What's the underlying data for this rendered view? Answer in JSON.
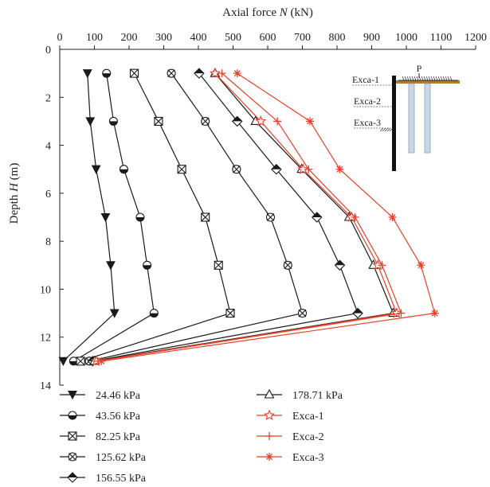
{
  "chart_data": {
    "type": "line",
    "x_axis": {
      "label_prefix": "Axial force ",
      "label_var": "N",
      "label_suffix": " (kN)",
      "range": [
        0,
        1200
      ],
      "ticks": [
        0,
        100,
        200,
        300,
        400,
        500,
        600,
        700,
        800,
        900,
        1000,
        1100,
        1200
      ],
      "position": "top"
    },
    "y_axis": {
      "label_prefix": "Depth ",
      "label_var": "H",
      "label_suffix": " (m)",
      "range": [
        0,
        14
      ],
      "ticks": [
        0,
        2,
        4,
        6,
        8,
        10,
        12,
        14
      ],
      "inverted": true
    },
    "grid": false,
    "legend_position": "bottom",
    "series": [
      {
        "name": "24.46 kPa",
        "color": "#1a1a1a",
        "marker": "triangle-down",
        "points": [
          [
            80,
            1
          ],
          [
            88,
            3
          ],
          [
            105,
            5
          ],
          [
            132,
            7
          ],
          [
            147,
            9
          ],
          [
            158,
            11
          ],
          [
            10,
            13
          ]
        ]
      },
      {
        "name": "43.56 kPa",
        "color": "#1a1a1a",
        "marker": "circle-half",
        "points": [
          [
            135,
            1
          ],
          [
            155,
            3
          ],
          [
            185,
            5
          ],
          [
            232,
            7
          ],
          [
            252,
            9
          ],
          [
            272,
            11
          ],
          [
            40,
            13
          ]
        ]
      },
      {
        "name": "82.25 kPa",
        "color": "#1a1a1a",
        "marker": "square-x",
        "points": [
          [
            215,
            1
          ],
          [
            285,
            3
          ],
          [
            352,
            5
          ],
          [
            420,
            7
          ],
          [
            458,
            9
          ],
          [
            492,
            11
          ],
          [
            60,
            13
          ]
        ]
      },
      {
        "name": "125.62 kPa",
        "color": "#1a1a1a",
        "marker": "circle-x",
        "points": [
          [
            322,
            1
          ],
          [
            420,
            3
          ],
          [
            510,
            5
          ],
          [
            608,
            7
          ],
          [
            658,
            9
          ],
          [
            700,
            11
          ],
          [
            85,
            13
          ]
        ]
      },
      {
        "name": "156.55 kPa",
        "color": "#1a1a1a",
        "marker": "diamond-half",
        "points": [
          [
            402,
            1
          ],
          [
            512,
            3
          ],
          [
            625,
            5
          ],
          [
            742,
            7
          ],
          [
            808,
            9
          ],
          [
            860,
            11
          ],
          [
            95,
            13
          ]
        ]
      },
      {
        "name": "178.71 kPa",
        "color": "#1a1a1a",
        "marker": "triangle-up-open",
        "points": [
          [
            448,
            1
          ],
          [
            565,
            3
          ],
          [
            698,
            5
          ],
          [
            835,
            7
          ],
          [
            905,
            9
          ],
          [
            962,
            11
          ],
          [
            100,
            13
          ]
        ]
      },
      {
        "name": "Exca-1",
        "color": "#e8412b",
        "marker": "star-open",
        "points": [
          [
            448,
            1
          ],
          [
            580,
            3
          ],
          [
            702,
            5
          ],
          [
            842,
            7
          ],
          [
            918,
            9
          ],
          [
            972,
            11
          ],
          [
            105,
            13
          ]
        ]
      },
      {
        "name": "Exca-2",
        "color": "#e8412b",
        "marker": "plus",
        "points": [
          [
            468,
            1
          ],
          [
            628,
            3
          ],
          [
            718,
            5
          ],
          [
            852,
            7
          ],
          [
            930,
            9
          ],
          [
            985,
            11
          ],
          [
            110,
            13
          ]
        ]
      },
      {
        "name": "Exca-3",
        "color": "#e8412b",
        "marker": "asterisk",
        "points": [
          [
            512,
            1
          ],
          [
            722,
            3
          ],
          [
            808,
            5
          ],
          [
            960,
            7
          ],
          [
            1042,
            9
          ],
          [
            1082,
            11
          ],
          [
            120,
            13
          ]
        ]
      }
    ],
    "inset": {
      "load_label": "P",
      "levels": [
        "Exca-1",
        "Exca-2",
        "Exca-3"
      ]
    }
  }
}
